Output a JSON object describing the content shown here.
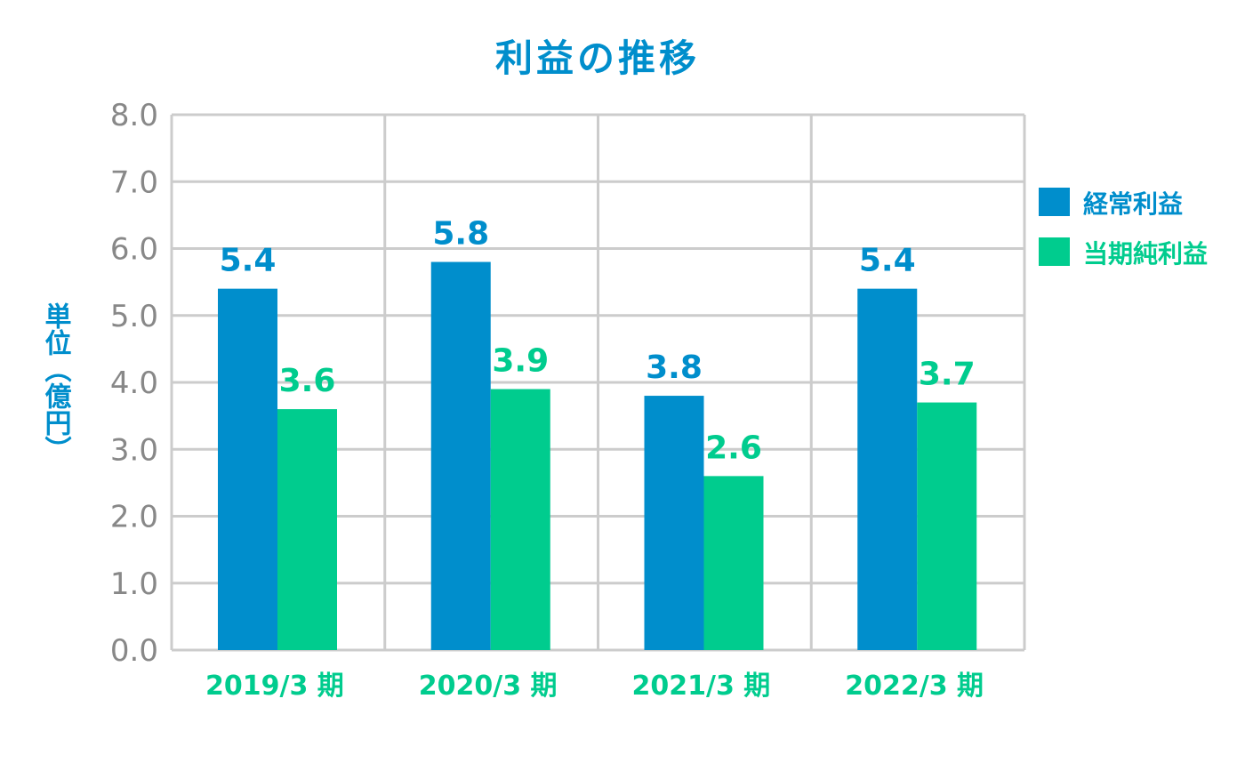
{
  "chart_data": {
    "type": "bar",
    "title": "利益の推移",
    "ylabel": "単位（億円）",
    "xlabel": "",
    "categories": [
      "2019/3 期",
      "2020/3 期",
      "2021/3 期",
      "2022/3 期"
    ],
    "series": [
      {
        "name": "経常利益",
        "values": [
          5.4,
          5.8,
          3.8,
          5.4
        ],
        "labels": [
          "5.4",
          "5.8",
          "3.8",
          "5.4"
        ],
        "color": "#008ECC"
      },
      {
        "name": "当期純利益",
        "values": [
          3.6,
          3.9,
          2.6,
          3.7
        ],
        "labels": [
          "3.6",
          "3.9",
          "2.6",
          "3.7"
        ],
        "color": "#00CC8E"
      }
    ],
    "ylim": [
      0,
      8
    ],
    "yticks": [
      "0.0",
      "1.0",
      "2.0",
      "3.0",
      "4.0",
      "5.0",
      "6.0",
      "7.0",
      "8.0"
    ],
    "grid": true,
    "legend_position": "right"
  },
  "colors": {
    "title": "#008ECC",
    "ylabel": "#008ECC",
    "xtick": "#00CC8E",
    "ytick": "#888888",
    "grid": "#CCCCCC"
  }
}
